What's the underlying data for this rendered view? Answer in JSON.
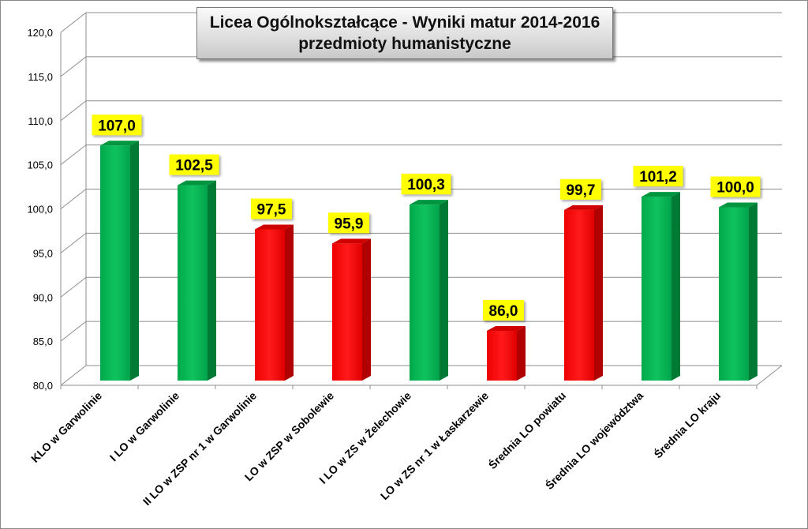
{
  "chart_data": {
    "type": "bar",
    "title": "Licea  Ogólnokształcące - Wyniki matur 2014-2016",
    "subtitle": "przedmioty humanistyczne",
    "categories": [
      "KLO w Garwolinie",
      "I LO  w Garwolinie",
      "II LO w ZSP nr 1 w Garwolinie",
      "LO w ZSP w Sobolewie",
      "I LO w ZS w Żelechowie",
      "LO w ZS nr 1 w Łaskarzewie",
      "Średnia LO powiatu",
      "Średnia LO województwa",
      "Średnia LO kraju"
    ],
    "values": [
      107.0,
      102.5,
      97.5,
      95.9,
      100.3,
      86.0,
      99.7,
      101.2,
      100.0
    ],
    "value_labels": [
      "107,0",
      "102,5",
      "97,5",
      "95,9",
      "100,3",
      "86,0",
      "99,7",
      "101,2",
      "100,0"
    ],
    "bar_colors": [
      "green",
      "green",
      "red",
      "red",
      "green",
      "red",
      "red",
      "green",
      "green"
    ],
    "ylim": [
      80,
      120
    ],
    "yticks": [
      "80,0",
      "85,0",
      "90,0",
      "95,0",
      "100,0",
      "105,0",
      "110,0",
      "115,0",
      "120,0"
    ],
    "xlabel": "",
    "ylabel": "",
    "grid": true,
    "legend": "none",
    "colors": {
      "green": "#00b04f",
      "red": "#ff0000",
      "label_bg": "#ffff00"
    }
  }
}
